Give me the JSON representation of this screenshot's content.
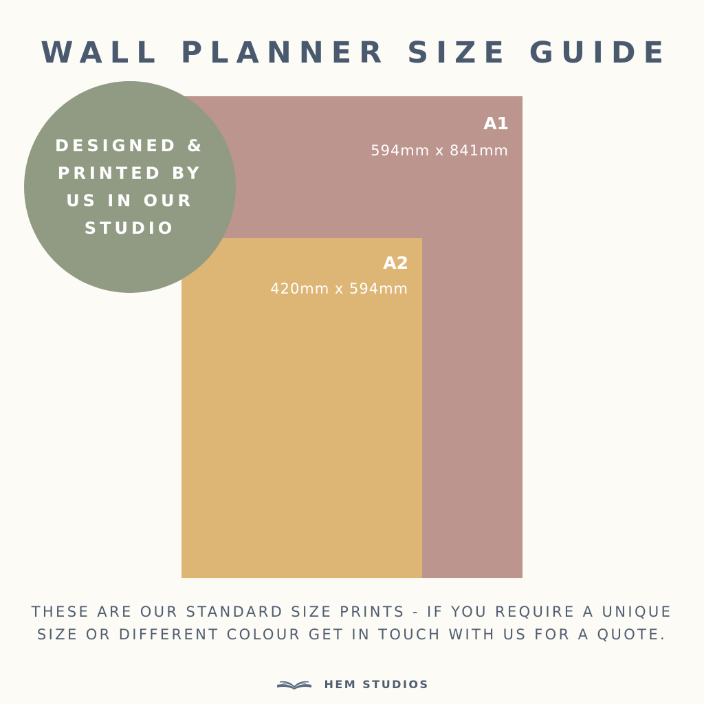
{
  "header": {
    "title": "WALL PLANNER SIZE GUIDE"
  },
  "badge": {
    "text": "DESIGNED & PRINTED BY US IN OUR STUDIO",
    "color": "#919b83"
  },
  "sizes": [
    {
      "name": "A1",
      "dimensions": "594mm x 841mm",
      "color": "#bc958e"
    },
    {
      "name": "A2",
      "dimensions": "420mm x 594mm",
      "color": "#ddb676"
    }
  ],
  "footer": {
    "note": "THESE ARE OUR STANDARD SIZE PRINTS - IF YOU REQUIRE A UNIQUE SIZE OR DIFFERENT COLOUR GET IN TOUCH WITH US FOR A QUOTE.",
    "brand_name": "HEM STUDIOS",
    "brand_icon": "open-book-icon"
  }
}
